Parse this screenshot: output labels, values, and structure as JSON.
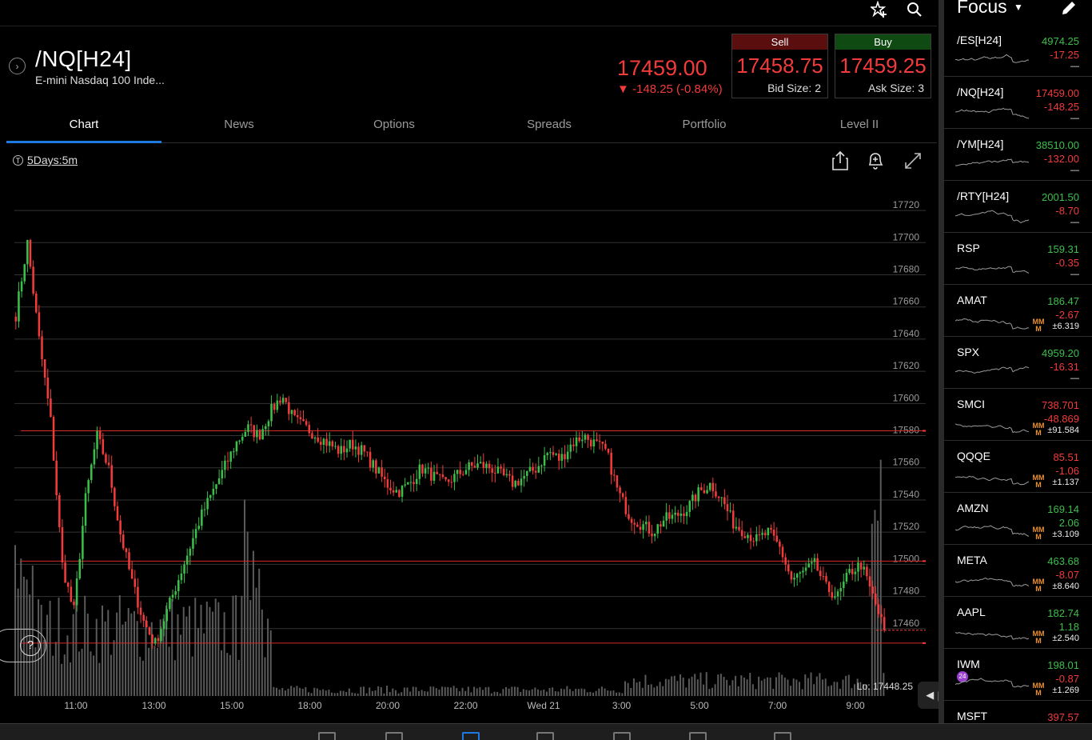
{
  "header": {
    "symbol": "/NQ[H24]",
    "description": "E-mini Nasdaq 100 Inde...",
    "last_price": "17459.00",
    "change": "▼ -148.25 (-0.84%)",
    "sell": {
      "label": "Sell",
      "price": "17458.75",
      "size": "Bid Size: 2"
    },
    "buy": {
      "label": "Buy",
      "price": "17459.25",
      "size": "Ask Size: 3"
    }
  },
  "tabs": [
    "Chart",
    "News",
    "Options",
    "Spreads",
    "Portfolio",
    "Level II"
  ],
  "active_tab": "Chart",
  "chart_toolbar": {
    "interval_badge": "T",
    "interval": "5Days:5m"
  },
  "help": "?",
  "colors": {
    "up": "#3cbf4a",
    "down": "#f23b3b",
    "accent": "#1f7ae0",
    "grid": "#333333",
    "volume": "#5a5a5a"
  },
  "chart_data": {
    "type": "candlestick",
    "y_ticks": [
      17720,
      17700,
      17680,
      17660,
      17640,
      17620,
      17600,
      17580,
      17560,
      17540,
      17520,
      17500,
      17480,
      17460
    ],
    "ylim": [
      17438,
      17726
    ],
    "x_ticks": [
      "11:00",
      "13:00",
      "15:00",
      "18:00",
      "20:00",
      "22:00",
      "Wed 21",
      "3:00",
      "5:00",
      "7:00",
      "9:00"
    ],
    "horizontal_lines": [
      17583,
      17502,
      17451
    ],
    "low_label": "Lo: 17448.25",
    "last_value": 17459,
    "close_path": [
      17655,
      17700,
      17640,
      17590,
      17500,
      17470,
      17540,
      17580,
      17560,
      17520,
      17490,
      17465,
      17450,
      17470,
      17490,
      17510,
      17530,
      17545,
      17560,
      17575,
      17585,
      17580,
      17595,
      17605,
      17590,
      17585,
      17580,
      17575,
      17570,
      17575,
      17570,
      17560,
      17550,
      17545,
      17550,
      17560,
      17555,
      17550,
      17555,
      17560,
      17562,
      17560,
      17555,
      17550,
      17555,
      17560,
      17570,
      17565,
      17575,
      17580,
      17575,
      17570,
      17545,
      17530,
      17525,
      17520,
      17528,
      17530,
      17535,
      17545,
      17550,
      17540,
      17525,
      17520,
      17515,
      17520,
      17510,
      17490,
      17495,
      17500,
      17485,
      17480,
      17495,
      17500,
      17480,
      17459
    ]
  },
  "watchlist": {
    "title": "Focus",
    "items": [
      {
        "symbol": "/ES[H24]",
        "price": "4974.25",
        "price_color": "green",
        "change": "-17.25",
        "change_color": "red",
        "extra": "—",
        "mm": false
      },
      {
        "symbol": "/NQ[H24]",
        "price": "17459.00",
        "price_color": "red",
        "change": "-148.25",
        "change_color": "red",
        "extra": "—",
        "mm": false
      },
      {
        "symbol": "/YM[H24]",
        "price": "38510.00",
        "price_color": "green",
        "change": "-132.00",
        "change_color": "red",
        "extra": "—",
        "mm": false
      },
      {
        "symbol": "/RTY[H24]",
        "price": "2001.50",
        "price_color": "green",
        "change": "-8.70",
        "change_color": "red",
        "extra": "—",
        "mm": false
      },
      {
        "symbol": "RSP",
        "price": "159.31",
        "price_color": "green",
        "change": "-0.35",
        "change_color": "red",
        "extra": "—",
        "mm": false
      },
      {
        "symbol": "AMAT",
        "price": "186.47",
        "price_color": "green",
        "change": "-2.67",
        "change_color": "red",
        "extra": "±6.319",
        "mm": true
      },
      {
        "symbol": "SPX",
        "price": "4959.20",
        "price_color": "green",
        "change": "-16.31",
        "change_color": "red",
        "extra": "—",
        "mm": false
      },
      {
        "symbol": "SMCI",
        "price": "738.701",
        "price_color": "red",
        "change": "-48.869",
        "change_color": "red",
        "extra": "±91.584",
        "mm": true
      },
      {
        "symbol": "QQQE",
        "price": "85.51",
        "price_color": "red",
        "change": "-1.06",
        "change_color": "red",
        "extra": "±1.137",
        "mm": true
      },
      {
        "symbol": "AMZN",
        "price": "169.14",
        "price_color": "green",
        "change": "2.06",
        "change_color": "green",
        "extra": "±3.109",
        "mm": true
      },
      {
        "symbol": "META",
        "price": "463.68",
        "price_color": "green",
        "change": "-8.07",
        "change_color": "red",
        "extra": "±8.640",
        "mm": true
      },
      {
        "symbol": "AAPL",
        "price": "182.74",
        "price_color": "green",
        "change": "1.18",
        "change_color": "green",
        "extra": "±2.540",
        "mm": true
      },
      {
        "symbol": "IWM",
        "price": "198.01",
        "price_color": "green",
        "change": "-0.87",
        "change_color": "red",
        "extra": "±1.269",
        "mm": true,
        "badge": "24"
      },
      {
        "symbol": "MSFT",
        "price": "397.57",
        "price_color": "red",
        "change": "",
        "change_color": "red",
        "extra": "",
        "mm": false
      }
    ],
    "mm_label_top": "MM",
    "mm_label_bottom": "M"
  }
}
